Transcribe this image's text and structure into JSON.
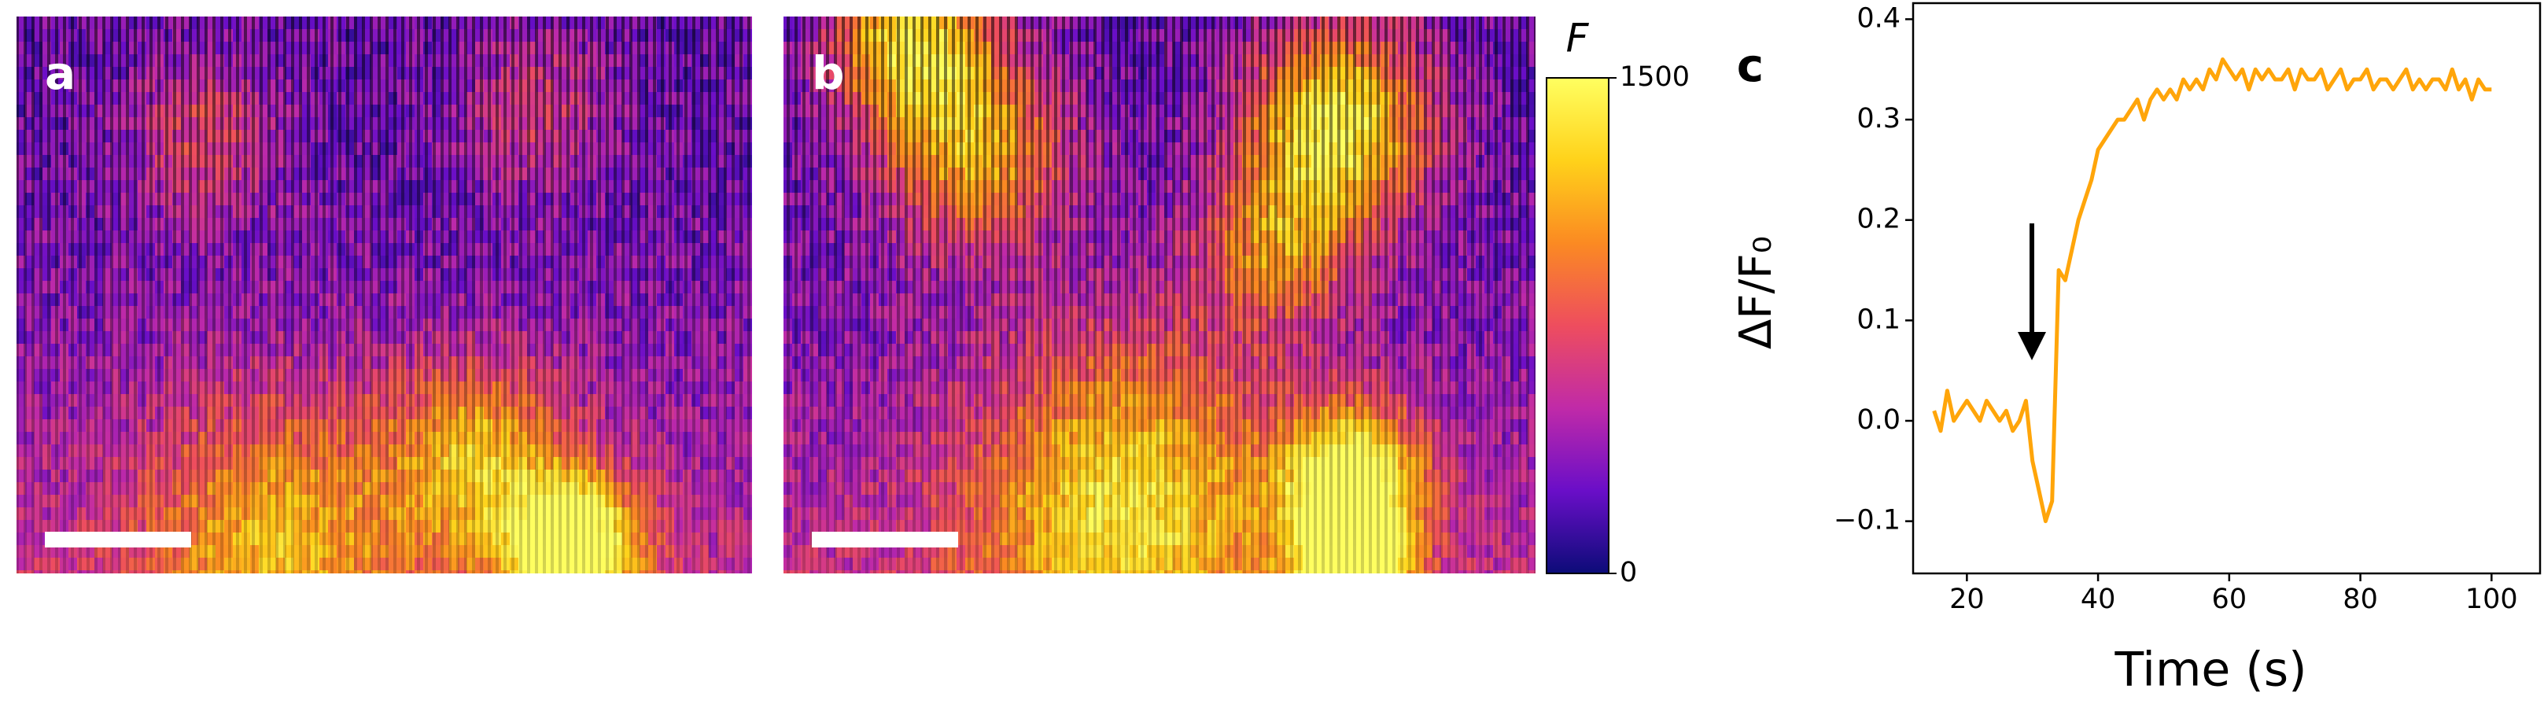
{
  "chart_data": [
    {
      "type": "image",
      "label": "a"
    },
    {
      "type": "image",
      "label": "b"
    },
    {
      "type": "colorbar",
      "title": "F",
      "ylim": [
        0,
        1500
      ],
      "yticks": [
        0,
        1500
      ],
      "colors": [
        "#0c0c78",
        "#6a0ec8",
        "#c02aa8",
        "#ee4d5e",
        "#fb8a22",
        "#ffd21a",
        "#ffff60"
      ]
    },
    {
      "type": "line",
      "label": "c",
      "xlabel": "Time (s)",
      "ylabel": "ΔF/F₀",
      "color": "#ffa50a",
      "xlim": [
        11.8,
        107.4
      ],
      "ylim": [
        -0.152,
        0.416
      ],
      "xticks": [
        20,
        40,
        60,
        80,
        100
      ],
      "yticks": [
        {
          "value": -0.1,
          "label": "−0.1"
        },
        {
          "value": 0,
          "label": "0.0"
        },
        0.1,
        0.2,
        0.3,
        0.4
      ],
      "x": [
        15,
        16,
        17,
        18,
        19,
        20,
        21,
        22,
        23,
        24,
        25,
        26,
        27,
        28,
        29,
        30,
        31,
        32,
        33,
        34,
        35,
        36,
        37,
        38,
        39,
        40,
        41,
        42,
        43,
        44,
        45,
        46,
        47,
        48,
        49,
        50,
        51,
        52,
        53,
        54,
        55,
        56,
        57,
        58,
        59,
        60,
        61,
        62,
        63,
        64,
        65,
        66,
        67,
        68,
        69,
        70,
        71,
        72,
        73,
        74,
        75,
        76,
        77,
        78,
        79,
        80,
        81,
        82,
        83,
        84,
        85,
        86,
        87,
        88,
        89,
        90,
        91,
        92,
        93,
        94,
        95,
        96,
        97,
        98,
        99,
        100
      ],
      "values": [
        0.01,
        -0.01,
        0.03,
        0.0,
        0.01,
        0.02,
        0.01,
        0.0,
        0.02,
        0.01,
        0.0,
        0.01,
        -0.01,
        0.0,
        0.02,
        -0.04,
        -0.07,
        -0.1,
        -0.08,
        0.15,
        0.14,
        0.17,
        0.2,
        0.22,
        0.24,
        0.27,
        0.28,
        0.29,
        0.3,
        0.3,
        0.31,
        0.32,
        0.3,
        0.32,
        0.33,
        0.32,
        0.33,
        0.32,
        0.34,
        0.33,
        0.34,
        0.33,
        0.35,
        0.34,
        0.36,
        0.35,
        0.34,
        0.35,
        0.33,
        0.35,
        0.34,
        0.35,
        0.34,
        0.34,
        0.35,
        0.33,
        0.35,
        0.34,
        0.34,
        0.35,
        0.33,
        0.34,
        0.35,
        0.33,
        0.34,
        0.34,
        0.35,
        0.33,
        0.34,
        0.34,
        0.33,
        0.34,
        0.35,
        0.33,
        0.34,
        0.33,
        0.34,
        0.34,
        0.33,
        0.35,
        0.33,
        0.34,
        0.32,
        0.34,
        0.33,
        0.33
      ]
    }
  ]
}
